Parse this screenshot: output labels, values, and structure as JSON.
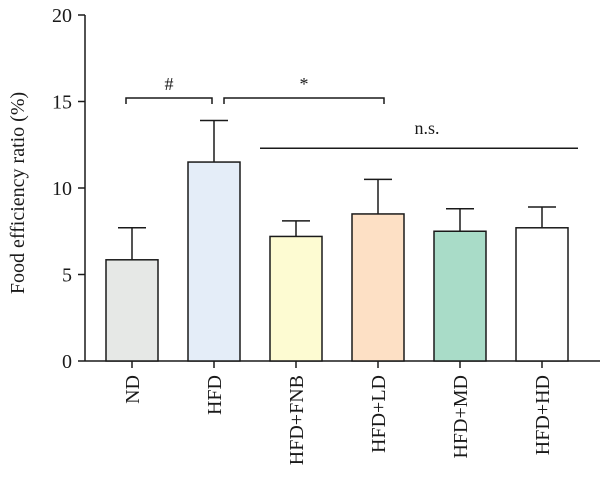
{
  "chart_data": {
    "type": "bar",
    "ylabel": "Food efficiency ratio (%)",
    "xlabel": "",
    "title": "",
    "ylim": [
      0,
      20
    ],
    "yticks": [
      0,
      5,
      10,
      15,
      20
    ],
    "categories": [
      "ND",
      "HFD",
      "HFD+FNB",
      "HFD+LD",
      "HFD+MD",
      "HFD+HD"
    ],
    "values": [
      5.85,
      11.5,
      7.2,
      8.5,
      7.5,
      7.7
    ],
    "errors": [
      1.85,
      2.4,
      0.9,
      2.0,
      1.3,
      1.2
    ],
    "colors": [
      "#e6e8e6",
      "#e4edf8",
      "#fdfbd2",
      "#fde0c5",
      "#a9dcc8",
      "#ffffff"
    ],
    "annotations": [
      {
        "label": "#",
        "from": 0,
        "to": 1,
        "y": 15.2,
        "style": "bracket"
      },
      {
        "label": "*",
        "from": 1,
        "to": 3,
        "y": 15.2,
        "style": "bracket"
      },
      {
        "label": "n.s.",
        "from": 2,
        "to": 5,
        "y": 12.3,
        "style": "line"
      }
    ],
    "grid": false,
    "legend": "none"
  }
}
